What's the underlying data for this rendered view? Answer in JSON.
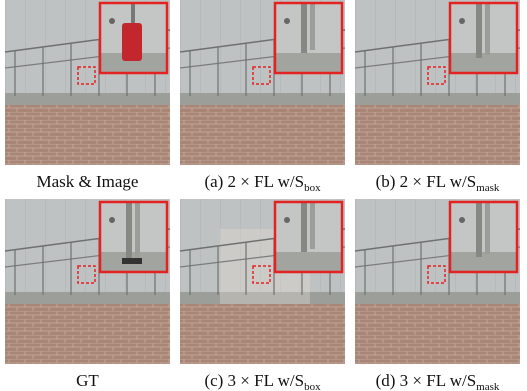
{
  "panels": [
    {
      "caption": "Mask & Image"
    },
    {
      "caption": "(a) 2 × FL w/S",
      "subscript": "box"
    },
    {
      "caption": "(b) 2 × FL w/S",
      "subscript": "mask"
    },
    {
      "caption": "GT"
    },
    {
      "caption": "(c) 3 × FL w/S",
      "subscript": "box"
    },
    {
      "caption": "(d) 3 × FL w/S",
      "subscript": "mask"
    }
  ]
}
